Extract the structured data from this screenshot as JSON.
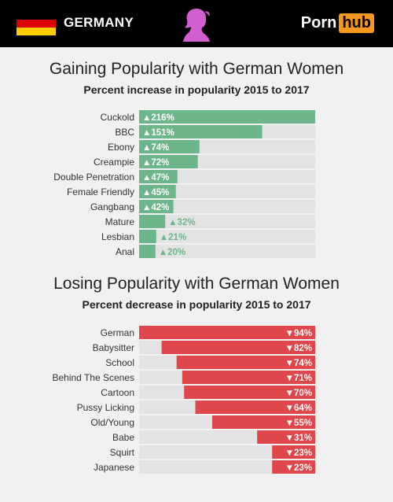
{
  "header": {
    "country": "GERMANY",
    "flag_colors": [
      "#000000",
      "#dd0000",
      "#ffce00"
    ],
    "icon": "woman-silhouette-icon",
    "icon_color": "#d15fd0",
    "logo_part1": "Porn",
    "logo_part2": "hub",
    "logo_accent_color": "#f7971d"
  },
  "chart_data": [
    {
      "type": "bar",
      "orientation": "horizontal",
      "title": "Gaining Popularity with German Women",
      "subtitle": "Percent increase in popularity 2015 to 2017",
      "categories": [
        "Cuckold",
        "BBC",
        "Ebony",
        "Creampie",
        "Double Penetration",
        "Female Friendly",
        "Gangbang",
        "Mature",
        "Lesbian",
        "Anal"
      ],
      "values": [
        216,
        151,
        74,
        72,
        47,
        45,
        42,
        32,
        21,
        20
      ],
      "labels": [
        "▲216%",
        "▲151%",
        "▲74%",
        "▲72%",
        "▲47%",
        "▲45%",
        "▲42%",
        "▲32%",
        "▲21%",
        "▲20%"
      ],
      "direction": "increase",
      "bar_color": "#6db58b",
      "xlim": [
        0,
        216
      ]
    },
    {
      "type": "bar",
      "orientation": "horizontal",
      "title": "Losing Popularity with German Women",
      "subtitle": "Percent decrease in popularity 2015 to 2017",
      "categories": [
        "German",
        "Babysitter",
        "School",
        "Behind The Scenes",
        "Cartoon",
        "Pussy Licking",
        "Old/Young",
        "Babe",
        "Squirt",
        "Japanese"
      ],
      "values": [
        94,
        82,
        74,
        71,
        70,
        64,
        55,
        31,
        23,
        23
      ],
      "labels": [
        "▼94%",
        "▼82%",
        "▼74%",
        "▼71%",
        "▼70%",
        "▼64%",
        "▼55%",
        "▼31%",
        "▼23%",
        "▼23%"
      ],
      "direction": "decrease",
      "bar_color": "#e0474c",
      "xlim": [
        0,
        94
      ]
    }
  ]
}
